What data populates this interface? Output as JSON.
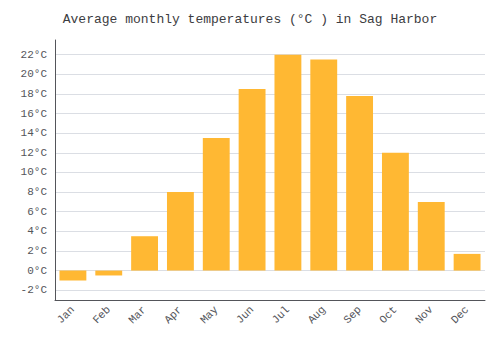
{
  "chart_data": {
    "type": "bar",
    "title": "Average monthly temperatures (°C ) in Sag Harbor",
    "categories": [
      "Jan",
      "Feb",
      "Mar",
      "Apr",
      "May",
      "Jun",
      "Jul",
      "Aug",
      "Sep",
      "Oct",
      "Nov",
      "Dec"
    ],
    "values": [
      -1.0,
      -0.5,
      3.5,
      8.0,
      13.5,
      18.5,
      22.0,
      21.5,
      17.8,
      12.0,
      7.0,
      1.7
    ],
    "color": "#FFB833",
    "ylim": [
      -3,
      23.5
    ],
    "yticks": [
      {
        "value": -2,
        "label": "-2°C"
      },
      {
        "value": 0,
        "label": "0°C"
      },
      {
        "value": 2,
        "label": "2°C"
      },
      {
        "value": 4,
        "label": "4°C"
      },
      {
        "value": 6,
        "label": "6°C"
      },
      {
        "value": 8,
        "label": "8°C"
      },
      {
        "value": 10,
        "label": "10°C"
      },
      {
        "value": 12,
        "label": "12°C"
      },
      {
        "value": 14,
        "label": "14°C"
      },
      {
        "value": 16,
        "label": "16°C"
      },
      {
        "value": 18,
        "label": "18°C"
      },
      {
        "value": 20,
        "label": "20°C"
      },
      {
        "value": 22,
        "label": "22°C"
      }
    ],
    "grid": true
  }
}
